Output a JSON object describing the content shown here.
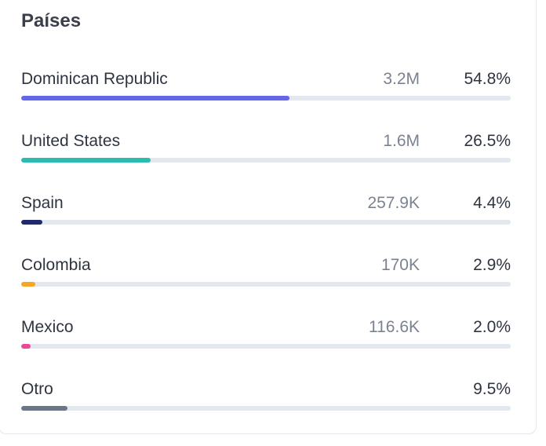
{
  "panel": {
    "title": "Países"
  },
  "countries": [
    {
      "name": "Dominican Republic",
      "value": "3.2M",
      "percent": "54.8%",
      "bar_fraction": 0.548,
      "color": "#6366e8"
    },
    {
      "name": "United States",
      "value": "1.6M",
      "percent": "26.5%",
      "bar_fraction": 0.265,
      "color": "#2bbbb3"
    },
    {
      "name": "Spain",
      "value": "257.9K",
      "percent": "4.4%",
      "bar_fraction": 0.044,
      "color": "#1f2a6b"
    },
    {
      "name": "Colombia",
      "value": "170K",
      "percent": "2.9%",
      "bar_fraction": 0.029,
      "color": "#f5a623"
    },
    {
      "name": "Mexico",
      "value": "116.6K",
      "percent": "2.0%",
      "bar_fraction": 0.02,
      "color": "#ec4899"
    },
    {
      "name": "Otro",
      "value": "",
      "percent": "9.5%",
      "bar_fraction": 0.095,
      "color": "#6b7686"
    }
  ]
}
